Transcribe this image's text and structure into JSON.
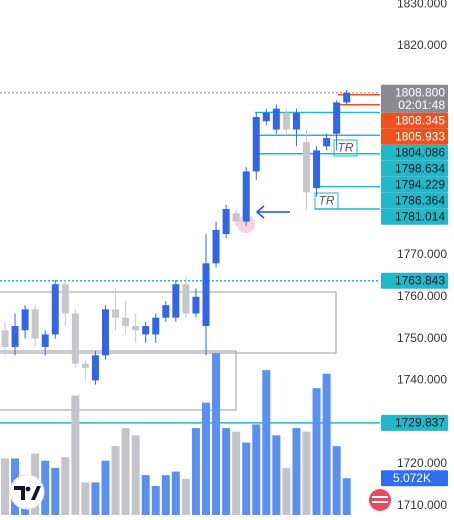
{
  "chart_data": {
    "type": "candlestick",
    "up_color": "#3366e6",
    "down_color": "#c6c6cc",
    "volume_up_color": "#5b8ff0",
    "volume_down_color": "#c4c4ca",
    "open": [
      1752,
      1748,
      1752,
      1757,
      1748,
      1751,
      1763,
      1756,
      1744,
      1740,
      1746,
      1757,
      1755,
      1753,
      1751,
      1751,
      1755,
      1755,
      1763,
      1756,
      1753,
      1768,
      1775,
      1780,
      1778,
      1790,
      1802,
      1800,
      1804,
      1800,
      1797,
      1786,
      1796,
      1799,
      1806.5
    ],
    "high": [
      1754,
      1756,
      1758,
      1758,
      1752,
      1764,
      1764,
      1757,
      1745,
      1747,
      1758,
      1762,
      1759,
      1756,
      1754,
      1756,
      1759,
      1764,
      1765,
      1762,
      1775,
      1778,
      1782,
      1781,
      1791,
      1804,
      1805,
      1806,
      1805,
      1805,
      1800,
      1796,
      1799,
      1807,
      1809.5
    ],
    "low": [
      1746,
      1746,
      1750,
      1748,
      1746,
      1750,
      1753,
      1743,
      1740,
      1739,
      1745,
      1752,
      1751,
      1749,
      1749,
      1749,
      1754,
      1754,
      1755,
      1755,
      1746,
      1767,
      1774,
      1777,
      1777,
      1788,
      1801,
      1799,
      1799,
      1796,
      1781,
      1784,
      1795,
      1795,
      1806
    ],
    "close": [
      1748,
      1753,
      1757,
      1750,
      1751,
      1763,
      1756,
      1744,
      1743,
      1746,
      1757,
      1755,
      1753,
      1752,
      1753,
      1755,
      1758,
      1763,
      1756,
      1760,
      1768,
      1776,
      1781,
      1778,
      1790,
      1803,
      1804,
      1805,
      1800,
      1804,
      1785,
      1795,
      1798,
      1806.5,
      1808.8
    ],
    "volume": [
      7.8,
      7.8,
      5.5,
      8.5,
      7.5,
      6.5,
      8.0,
      16.5,
      4.5,
      4.5,
      7.5,
      9.5,
      12.0,
      11.0,
      5.5,
      4.0,
      5.5,
      6.0,
      5.0,
      12.0,
      15.5,
      22.3,
      12.0,
      11.5,
      10.0,
      12.5,
      20.0,
      11.0,
      6.5,
      12.0,
      11.5,
      17.5,
      19.5,
      9.5,
      5.072
    ],
    "volume_lim": [
      0,
      22.5
    ],
    "volume_value_label": "5.072K",
    "ylim": [
      1706.6,
      1831
    ],
    "yticks": [
      {
        "value": 1830,
        "label": "1830.000"
      },
      {
        "value": 1820,
        "label": "1820.000"
      },
      {
        "value": 1770,
        "label": "1770.000"
      },
      {
        "value": 1760,
        "label": "1760.000"
      },
      {
        "value": 1750,
        "label": "1750.000"
      },
      {
        "value": 1740,
        "label": "1740.000"
      },
      {
        "value": 1720,
        "label": "1720.000"
      },
      {
        "value": 1710,
        "label": "1710.000"
      }
    ],
    "price_labels": [
      {
        "value": 1808.8,
        "label": "1808.800",
        "color": "#8a8a94"
      },
      {
        "value": 1808.345,
        "label": "1808.345",
        "color": "#f0501e"
      },
      {
        "value": 1805.933,
        "label": "1805.933",
        "color": "#f0501e"
      },
      {
        "value": 1804.086,
        "label": "1804.086",
        "color": "#22b8c8"
      },
      {
        "value": 1798.634,
        "label": "1798.634",
        "color": "#22b8c8"
      },
      {
        "value": 1794.229,
        "label": "1794.229",
        "color": "#22b8c8"
      },
      {
        "value": 1786.364,
        "label": "1786.364",
        "color": "#22b8c8"
      },
      {
        "value": 1781.014,
        "label": "1781.014",
        "color": "#22b8c8"
      },
      {
        "value": 1763.843,
        "label": "1763.843",
        "color": "#22b8c8"
      },
      {
        "value": 1729.837,
        "label": "1729.837",
        "color": "#22b8c8"
      }
    ],
    "countdown": "02:01:48",
    "annotations": [
      "TR",
      "TR"
    ]
  }
}
